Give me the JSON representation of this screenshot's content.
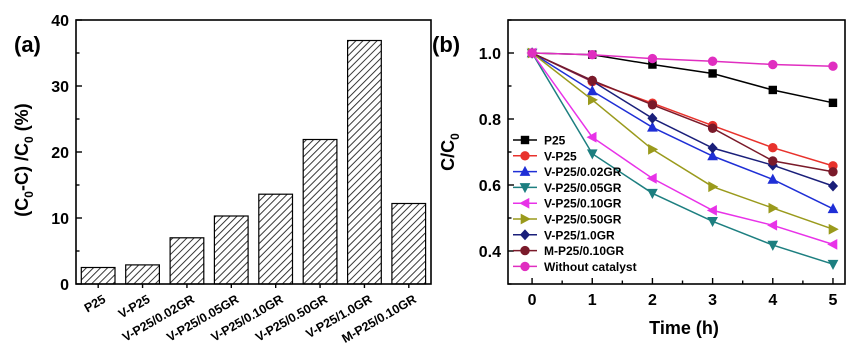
{
  "chart_data": [
    {
      "type": "bar",
      "panel_label": "(a)",
      "categories": [
        "P25",
        "V-P25",
        "V-P25/0.02GR",
        "V-P25/0.05GR",
        "V-P25/0.10GR",
        "V-P25/0.50GR",
        "V-P25/1.0GR",
        "M-P25/0.10GR"
      ],
      "values": [
        2.5,
        2.9,
        7.0,
        10.3,
        13.6,
        21.9,
        36.9,
        12.2
      ],
      "ylabel": "(C0-C)/C0 (%)",
      "ylim": [
        0,
        40
      ],
      "yticks": [
        0,
        10,
        20,
        30,
        40
      ],
      "bar_fill": "hatched",
      "grid": false
    },
    {
      "type": "line",
      "panel_label": "(b)",
      "x": [
        0,
        1,
        2,
        3,
        4,
        5
      ],
      "xlabel": "Time (h)",
      "ylabel": "C/C0",
      "xlim": [
        -0.4,
        5.2
      ],
      "ylim": [
        0.3,
        1.1
      ],
      "xticks": [
        0,
        1,
        2,
        3,
        4,
        5
      ],
      "yticks": [
        0.4,
        0.6,
        0.8,
        1.0
      ],
      "legend_position": "left",
      "grid": false,
      "series": [
        {
          "name": "P25",
          "color": "#000000",
          "marker": "square",
          "values": [
            1.0,
            0.995,
            0.965,
            0.938,
            0.888,
            0.849
          ]
        },
        {
          "name": "V-P25",
          "color": "#e8322c",
          "marker": "circle",
          "values": [
            1.0,
            0.913,
            0.848,
            0.78,
            0.713,
            0.658
          ]
        },
        {
          "name": "V-P25/0.02GR",
          "color": "#1f2fd6",
          "marker": "triangle-up",
          "values": [
            1.0,
            0.885,
            0.775,
            0.688,
            0.617,
            0.528
          ]
        },
        {
          "name": "V-P25/0.05GR",
          "color": "#1d7f80",
          "marker": "triangle-down",
          "values": [
            1.0,
            0.695,
            0.575,
            0.49,
            0.418,
            0.36
          ]
        },
        {
          "name": "V-P25/0.10GR",
          "color": "#e832e8",
          "marker": "triangle-left",
          "values": [
            1.0,
            0.745,
            0.62,
            0.523,
            0.478,
            0.42
          ]
        },
        {
          "name": "V-P25/0.50GR",
          "color": "#9a9a1c",
          "marker": "triangle-right",
          "values": [
            1.0,
            0.858,
            0.708,
            0.595,
            0.53,
            0.466
          ]
        },
        {
          "name": "V-P25/1.0GR",
          "color": "#1a1f7a",
          "marker": "diamond",
          "values": [
            1.0,
            0.915,
            0.802,
            0.712,
            0.66,
            0.597
          ]
        },
        {
          "name": "M-P25/0.10GR",
          "color": "#7a1a2a",
          "marker": "circle",
          "values": [
            1.0,
            0.917,
            0.843,
            0.772,
            0.673,
            0.64
          ]
        },
        {
          "name": "Without catalyst",
          "color": "#e02ec0",
          "marker": "circle",
          "values": [
            1.0,
            0.995,
            0.983,
            0.975,
            0.965,
            0.96
          ]
        }
      ]
    }
  ]
}
